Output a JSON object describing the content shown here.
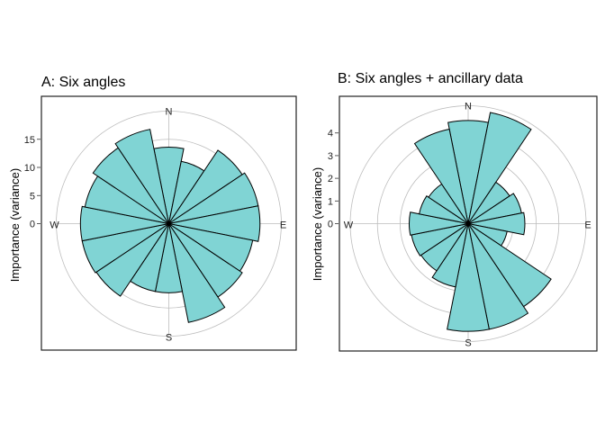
{
  "chart_data": [
    {
      "type": "polar-bar",
      "title": "A: Six angles",
      "ylabel": "Importance (variance)",
      "compass_labels": {
        "n": "N",
        "e": "E",
        "s": "S",
        "w": "W"
      },
      "yticks": [
        0,
        5,
        10,
        15
      ],
      "rmax": 20,
      "bin_width_deg": 22.5,
      "bars": [
        {
          "center_deg": 0,
          "value": 13.6
        },
        {
          "center_deg": 22.5,
          "value": 11.3
        },
        {
          "center_deg": 45,
          "value": 15.7
        },
        {
          "center_deg": 67.5,
          "value": 16.2
        },
        {
          "center_deg": 90,
          "value": 16.2
        },
        {
          "center_deg": 112.5,
          "value": 15.2
        },
        {
          "center_deg": 135,
          "value": 15.7
        },
        {
          "center_deg": 157.5,
          "value": 17.9
        },
        {
          "center_deg": 180,
          "value": 12.3
        },
        {
          "center_deg": 202.5,
          "value": 12.3
        },
        {
          "center_deg": 225,
          "value": 15.5
        },
        {
          "center_deg": 247.5,
          "value": 15.7
        },
        {
          "center_deg": 270,
          "value": 15.7
        },
        {
          "center_deg": 292.5,
          "value": 15.2
        },
        {
          "center_deg": 315,
          "value": 16.2
        },
        {
          "center_deg": 337.5,
          "value": 17.1
        }
      ]
    },
    {
      "type": "polar-bar",
      "title": "B: Six angles + ancillary data",
      "ylabel": "Importance (variance)",
      "compass_labels": {
        "n": "N",
        "e": "E",
        "s": "S",
        "w": "W"
      },
      "yticks": [
        0,
        1,
        2,
        3,
        4
      ],
      "rmax": 5.2,
      "bin_width_deg": 22.5,
      "bars": [
        {
          "center_deg": 0,
          "value": 4.55
        },
        {
          "center_deg": 22.5,
          "value": 5.0
        },
        {
          "center_deg": 45,
          "value": 2.2
        },
        {
          "center_deg": 67.5,
          "value": 2.4
        },
        {
          "center_deg": 90,
          "value": 2.5
        },
        {
          "center_deg": 112.5,
          "value": 1.75
        },
        {
          "center_deg": 135,
          "value": 4.4
        },
        {
          "center_deg": 157.5,
          "value": 4.75
        },
        {
          "center_deg": 180,
          "value": 4.75
        },
        {
          "center_deg": 202.5,
          "value": 2.85
        },
        {
          "center_deg": 225,
          "value": 2.5
        },
        {
          "center_deg": 247.5,
          "value": 2.55
        },
        {
          "center_deg": 270,
          "value": 2.6
        },
        {
          "center_deg": 292.5,
          "value": 2.2
        },
        {
          "center_deg": 315,
          "value": 2.1
        },
        {
          "center_deg": 337.5,
          "value": 4.25
        }
      ]
    }
  ]
}
